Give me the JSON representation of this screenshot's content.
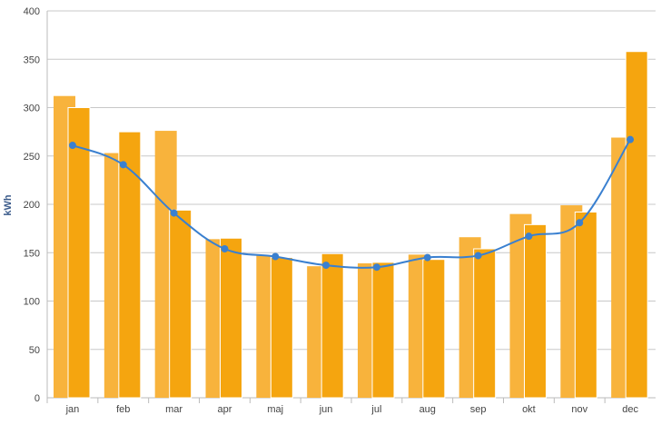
{
  "chart_data": {
    "type": "bar",
    "title": "",
    "xlabel": "",
    "ylabel": "kWh",
    "ylim": [
      0,
      400
    ],
    "yticks": [
      0,
      50,
      100,
      150,
      200,
      250,
      300,
      350,
      400
    ],
    "grid": true,
    "legend": "none",
    "categories": [
      "jan",
      "feb",
      "mar",
      "apr",
      "maj",
      "jun",
      "jul",
      "aug",
      "sep",
      "okt",
      "nov",
      "dec"
    ],
    "series": [
      {
        "type": "bar",
        "color": "#F8B33C",
        "values": [
          312,
          253,
          276,
          164,
          147,
          136,
          139,
          148,
          166,
          190,
          199,
          269
        ]
      },
      {
        "type": "bar",
        "color": "#F5A50F",
        "values": [
          300,
          275,
          194,
          165,
          145,
          149,
          140,
          143,
          154,
          179,
          192,
          358
        ]
      },
      {
        "type": "line",
        "color": "#3A80D0",
        "values": [
          261,
          241,
          191,
          154,
          146,
          137,
          135,
          145,
          147,
          167,
          181,
          267
        ]
      }
    ],
    "colors": {
      "grid": "#C8C8C8",
      "axis": "#BBBBBB"
    }
  }
}
